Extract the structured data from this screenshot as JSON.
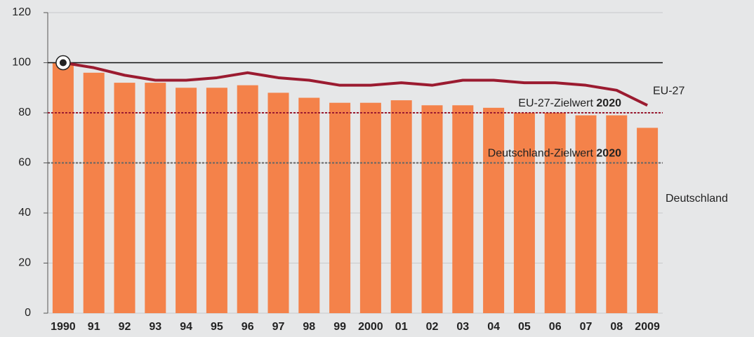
{
  "chart_data": {
    "type": "bar",
    "categories": [
      "1990",
      "91",
      "92",
      "93",
      "94",
      "95",
      "96",
      "97",
      "98",
      "99",
      "2000",
      "01",
      "02",
      "03",
      "04",
      "05",
      "06",
      "07",
      "08",
      "2009"
    ],
    "series": [
      {
        "name": "Deutschland",
        "type": "bar",
        "color": "#f4824a",
        "values": [
          100,
          96,
          92,
          92,
          90,
          90,
          91,
          88,
          86,
          84,
          84,
          85,
          83,
          83,
          82,
          80,
          80,
          79,
          79,
          74
        ]
      },
      {
        "name": "EU-27",
        "type": "line",
        "color": "#9b1b30",
        "values": [
          100,
          98,
          95,
          93,
          93,
          94,
          96,
          94,
          93,
          91,
          91,
          92,
          91,
          93,
          93,
          92,
          92,
          91,
          89,
          83
        ]
      }
    ],
    "reference_lines": [
      {
        "value": 100,
        "color": "#111111",
        "style": "solid"
      },
      {
        "value": 80,
        "color": "#9b1b30",
        "style": "dotted",
        "label": "EU-27-Zielwert",
        "label_bold": "2020"
      },
      {
        "value": 60,
        "color": "#666666",
        "style": "dotted",
        "label": "Deutschland-Zielwert",
        "label_bold": "2020"
      }
    ],
    "ylim": [
      0,
      120
    ],
    "yticks": [
      0,
      20,
      40,
      60,
      80,
      100,
      120
    ],
    "grid": true
  }
}
